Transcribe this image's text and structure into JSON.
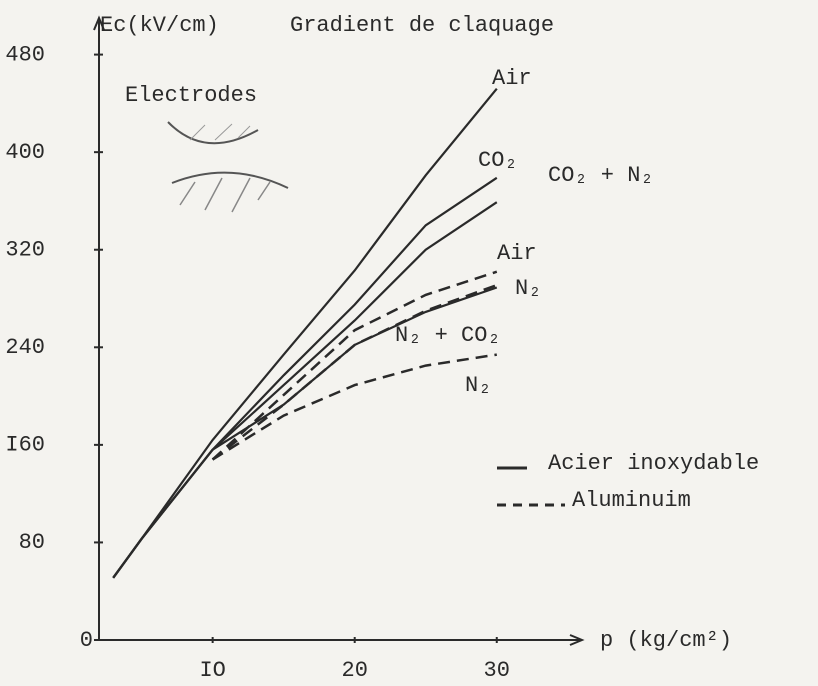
{
  "chart_data": {
    "type": "line",
    "title": "Gradient de claquage",
    "y_label": "Ec(kV/cm)",
    "x_label": "p (kg/cm²)",
    "annotation": "Electrodes",
    "x": [
      3,
      5,
      10,
      15,
      20,
      25,
      30
    ],
    "xlim": [
      2,
      36
    ],
    "xticks": [
      {
        "value": 10,
        "label": "IO"
      },
      20,
      30
    ],
    "ylim": [
      0,
      510
    ],
    "yticks": [
      0,
      80,
      {
        "value": 160,
        "label": "I60"
      },
      240,
      320,
      400,
      480
    ],
    "color": "#2a2a2a",
    "series": [
      {
        "name": "Air",
        "style": "solid",
        "values": [
          51,
          83,
          164,
          234,
          303,
          381,
          452
        ]
      },
      {
        "name": "CO₂",
        "style": "solid",
        "values": [
          51,
          83,
          156,
          217,
          275,
          340,
          379
        ]
      },
      {
        "name": "CO₂ + N₂",
        "style": "solid",
        "values": [
          51,
          83,
          156,
          209,
          262,
          320,
          359
        ]
      },
      {
        "name": "N₂",
        "style": "solid",
        "values": [
          51,
          83,
          156,
          193,
          242,
          269,
          289
        ]
      },
      {
        "name": "Air",
        "style": "dashed",
        "values": [
          null,
          null,
          148,
          201,
          254,
          283,
          302
        ]
      },
      {
        "name": "N₂ + CO₂",
        "style": "dashed",
        "values": [
          null,
          null,
          148,
          193,
          242,
          270,
          291
        ]
      },
      {
        "name": "N₂",
        "style": "dashed",
        "values": [
          null,
          null,
          148,
          184,
          209,
          225,
          234
        ]
      }
    ],
    "legend": [
      {
        "label": "Acier inoxydable",
        "style": "solid"
      },
      {
        "label": "Aluminuim",
        "style": "dashed"
      }
    ]
  }
}
